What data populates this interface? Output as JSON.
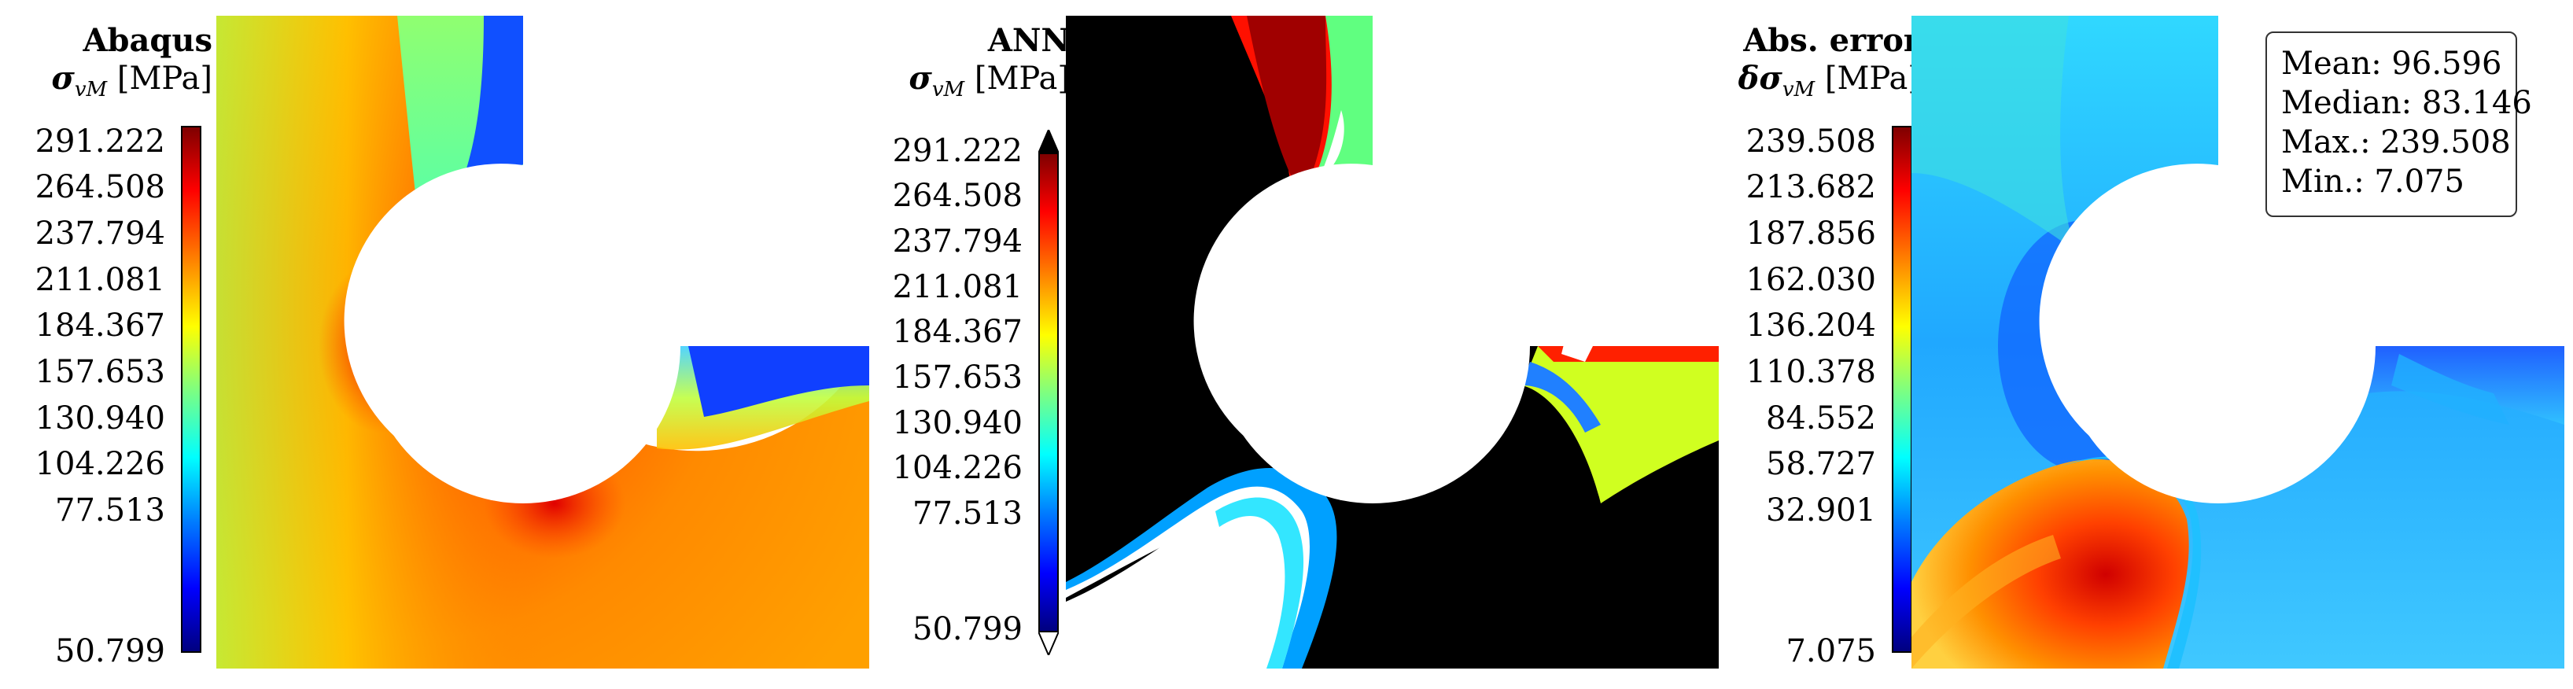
{
  "panels": [
    {
      "title": "Abaqus",
      "label_symbol": "σ",
      "label_sub": "vM",
      "label_unit": "[MPa]",
      "ticks": [
        "291.222",
        "264.508",
        "237.794",
        "211.081",
        "184.367",
        "157.653",
        "130.940",
        "104.226",
        "77.513",
        "50.799"
      ]
    },
    {
      "title": "ANN",
      "label_symbol": "σ",
      "label_sub": "vM",
      "label_unit": "[MPa]",
      "ticks": [
        "291.222",
        "264.508",
        "237.794",
        "211.081",
        "184.367",
        "157.653",
        "130.940",
        "104.226",
        "77.513",
        "50.799"
      ]
    },
    {
      "title": "Abs. error",
      "label_symbol": "δσ",
      "label_sub": "vM",
      "label_unit": "[MPa]",
      "ticks": [
        "239.508",
        "213.682",
        "187.856",
        "162.030",
        "136.204",
        "110.378",
        "84.552",
        "58.727",
        "32.901",
        "7.075"
      ]
    }
  ],
  "stats": {
    "mean": "Mean: 96.596",
    "median": "Median: 83.146",
    "max": "Max.: 239.508",
    "min": "Min.: 7.075"
  },
  "colormap": [
    "#00007f",
    "#0000ff",
    "#007fff",
    "#00ffff",
    "#7fff7f",
    "#ffff00",
    "#ff7f00",
    "#ff0000",
    "#7f0000"
  ]
}
